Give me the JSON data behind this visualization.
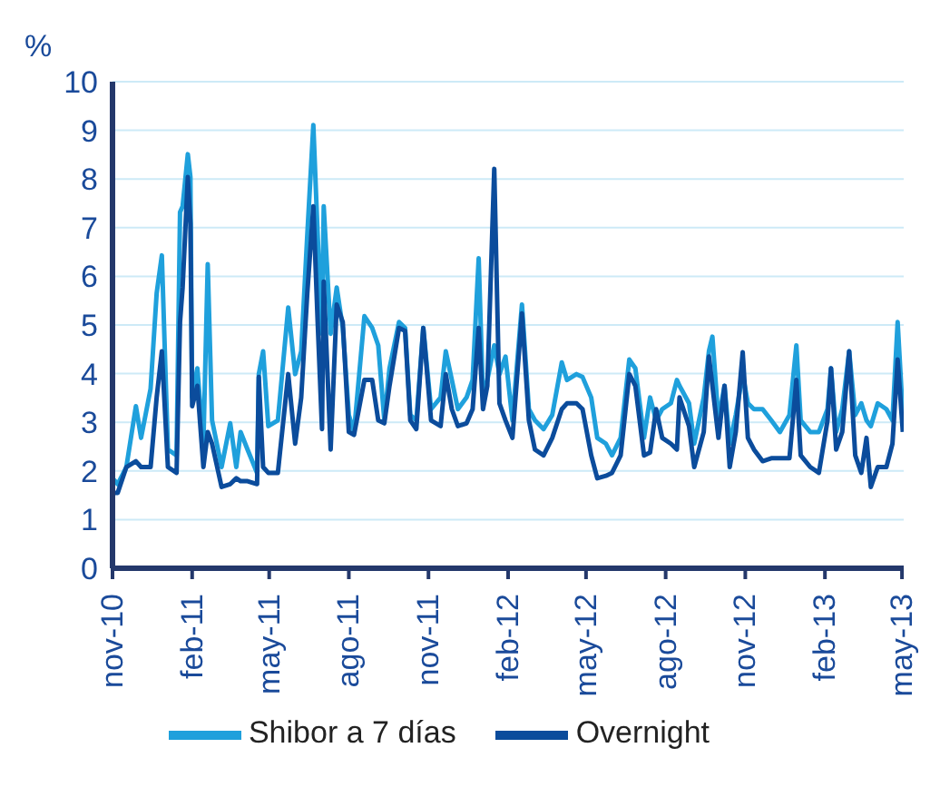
{
  "chart_data": {
    "type": "line",
    "ylabel": "%",
    "x": [
      "2010-11-01",
      "2010-11-07",
      "2010-11-17",
      "2010-11-28",
      "2010-12-04",
      "2010-12-15",
      "2010-12-22",
      "2010-12-28",
      "2011-01-04",
      "2011-01-14",
      "2011-01-18",
      "2011-01-21",
      "2011-01-27",
      "2011-01-30",
      "2011-02-01",
      "2011-02-07",
      "2011-02-14",
      "2011-02-19",
      "2011-02-24",
      "2011-03-07",
      "2011-03-17",
      "2011-03-24",
      "2011-03-29",
      "2011-04-06",
      "2011-04-17",
      "2011-04-19",
      "2011-04-24",
      "2011-04-30",
      "2011-05-11",
      "2011-05-23",
      "2011-05-31",
      "2011-06-07",
      "2011-06-14",
      "2011-06-21",
      "2011-06-26",
      "2011-07-01",
      "2011-07-03",
      "2011-07-11",
      "2011-07-18",
      "2011-07-25",
      "2011-08-01",
      "2011-08-07",
      "2011-08-19",
      "2011-08-28",
      "2011-09-04",
      "2011-09-11",
      "2011-09-17",
      "2011-09-28",
      "2011-10-05",
      "2011-10-11",
      "2011-10-18",
      "2011-10-26",
      "2011-11-04",
      "2011-11-15",
      "2011-11-21",
      "2011-11-28",
      "2011-12-05",
      "2011-12-15",
      "2011-12-22",
      "2011-12-29",
      "2012-01-03",
      "2012-01-08",
      "2012-01-16",
      "2012-01-22",
      "2012-01-29",
      "2012-02-06",
      "2012-02-17",
      "2012-02-25",
      "2012-03-03",
      "2012-03-13",
      "2012-03-23",
      "2012-04-03",
      "2012-04-09",
      "2012-04-20",
      "2012-04-27",
      "2012-05-07",
      "2012-05-14",
      "2012-05-24",
      "2012-05-31",
      "2012-06-10",
      "2012-06-20",
      "2012-06-27",
      "2012-07-07",
      "2012-07-14",
      "2012-07-21",
      "2012-07-28",
      "2012-08-07",
      "2012-08-14",
      "2012-08-17",
      "2012-08-28",
      "2012-09-03",
      "2012-09-14",
      "2012-09-20",
      "2012-09-24",
      "2012-10-01",
      "2012-10-08",
      "2012-10-14",
      "2012-10-21",
      "2012-10-29",
      "2012-11-04",
      "2012-11-11",
      "2012-11-21",
      "2012-12-01",
      "2012-12-11",
      "2012-12-22",
      "2012-12-30",
      "2013-01-04",
      "2013-01-15",
      "2013-01-25",
      "2013-02-04",
      "2013-02-08",
      "2013-02-14",
      "2013-02-21",
      "2013-03-01",
      "2013-03-08",
      "2013-03-15",
      "2013-03-21",
      "2013-03-26",
      "2013-04-03",
      "2013-04-13",
      "2013-04-20",
      "2013-04-26",
      "2013-05-02"
    ],
    "series": [
      {
        "name": "Shibor a 7 días",
        "color": "#1fa0dc",
        "values": [
          1.85,
          1.73,
          2.08,
          3.33,
          2.68,
          3.69,
          5.65,
          6.43,
          2.44,
          2.32,
          7.32,
          7.44,
          8.51,
          8.04,
          3.51,
          4.11,
          2.56,
          6.25,
          3.04,
          2.08,
          2.98,
          2.08,
          2.8,
          2.44,
          1.96,
          3.99,
          4.46,
          2.92,
          3.04,
          5.36,
          3.99,
          4.46,
          6.85,
          9.11,
          6.85,
          4.82,
          7.44,
          4.82,
          5.77,
          4.94,
          3.15,
          2.8,
          5.18,
          4.94,
          4.58,
          3.04,
          4.11,
          5.06,
          4.94,
          3.15,
          3.04,
          4.94,
          3.27,
          3.51,
          4.46,
          3.87,
          3.27,
          3.51,
          3.87,
          6.37,
          3.51,
          3.87,
          4.58,
          3.99,
          4.35,
          3.04,
          5.42,
          3.27,
          3.04,
          2.86,
          3.15,
          4.23,
          3.87,
          3.99,
          3.93,
          3.51,
          2.68,
          2.56,
          2.32,
          2.68,
          4.29,
          4.11,
          2.68,
          3.51,
          3.04,
          3.27,
          3.39,
          3.87,
          3.75,
          3.39,
          2.56,
          3.51,
          4.46,
          4.76,
          3.04,
          3.75,
          2.56,
          3.15,
          3.99,
          3.39,
          3.27,
          3.27,
          3.04,
          2.8,
          3.15,
          4.58,
          3.04,
          2.8,
          2.8,
          3.27,
          4.11,
          2.8,
          3.27,
          4.46,
          3.15,
          3.39,
          3.04,
          2.92,
          3.39,
          3.27,
          3.04,
          5.06,
          3.15
        ]
      },
      {
        "name": "Overnight",
        "color": "#0b4c9c",
        "values": [
          1.55,
          1.55,
          2.08,
          2.2,
          2.08,
          2.08,
          3.51,
          4.46,
          2.08,
          1.96,
          5.06,
          5.77,
          8.04,
          7.08,
          3.33,
          3.75,
          2.08,
          2.8,
          2.56,
          1.67,
          1.73,
          1.85,
          1.79,
          1.79,
          1.73,
          3.93,
          2.08,
          1.96,
          1.96,
          3.99,
          2.56,
          3.51,
          5.65,
          7.44,
          5.06,
          2.86,
          5.89,
          2.44,
          5.42,
          5.06,
          2.8,
          2.74,
          3.87,
          3.87,
          3.04,
          2.98,
          3.75,
          4.94,
          4.88,
          3.04,
          2.86,
          4.94,
          3.04,
          2.92,
          3.99,
          3.27,
          2.92,
          2.98,
          3.27,
          4.94,
          3.27,
          3.75,
          8.21,
          3.39,
          3.04,
          2.68,
          5.24,
          3.04,
          2.44,
          2.32,
          2.68,
          3.27,
          3.39,
          3.39,
          3.27,
          2.32,
          1.85,
          1.9,
          1.96,
          2.32,
          3.99,
          3.75,
          2.32,
          2.38,
          3.27,
          2.68,
          2.56,
          2.44,
          3.51,
          2.92,
          2.08,
          2.8,
          4.35,
          3.75,
          2.68,
          3.75,
          2.08,
          2.8,
          4.44,
          2.68,
          2.44,
          2.2,
          2.26,
          2.26,
          2.26,
          3.87,
          2.32,
          2.08,
          1.96,
          3.04,
          4.11,
          2.44,
          2.8,
          4.46,
          2.32,
          1.96,
          2.68,
          1.67,
          2.08,
          2.08,
          2.56,
          4.29,
          2.8
        ]
      }
    ],
    "xlim": [
      "2010-11-01",
      "2013-05-03"
    ],
    "xticks": [
      {
        "value": "2010-11-01",
        "label": "nov-10"
      },
      {
        "value": "2011-02-01",
        "label": "feb-11"
      },
      {
        "value": "2011-05-01",
        "label": "may-11"
      },
      {
        "value": "2011-08-01",
        "label": "ago-11"
      },
      {
        "value": "2011-11-01",
        "label": "nov-11"
      },
      {
        "value": "2012-02-01",
        "label": "feb-12"
      },
      {
        "value": "2012-05-01",
        "label": "may-12"
      },
      {
        "value": "2012-08-01",
        "label": "ago-12"
      },
      {
        "value": "2012-11-01",
        "label": "nov-12"
      },
      {
        "value": "2013-02-01",
        "label": "feb-13"
      },
      {
        "value": "2013-05-01",
        "label": "may-13"
      }
    ],
    "ylim": [
      0,
      10
    ],
    "yticks": [
      0,
      1,
      2,
      3,
      4,
      5,
      6,
      7,
      8,
      9,
      10
    ],
    "grid": "y",
    "legend": "bottom",
    "marker": "none",
    "line_style": "solid"
  }
}
